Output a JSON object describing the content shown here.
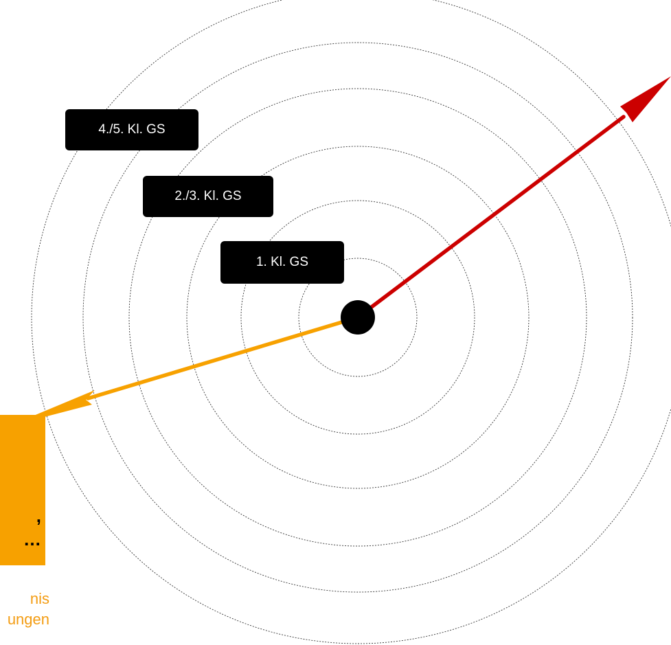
{
  "rings": [
    {
      "level": "1. Kl. GS"
    },
    {
      "level": "2./3. Kl. GS"
    },
    {
      "level": "4./5. Kl. GS"
    }
  ],
  "labels": {
    "level_1": "1. Kl. GS",
    "level_2": "2./3. Kl. GS",
    "level_3": "4./5. Kl. GS"
  },
  "orange_box": {
    "line_1": ",",
    "line_2": "…"
  },
  "orange_caption": {
    "line_1": "nis",
    "line_2": "ungen"
  },
  "colors": {
    "red_arrow": "#cc0000",
    "orange_arrow": "#f7a100",
    "center_dot": "#000000",
    "label_bg": "#000000",
    "label_text": "#ffffff",
    "orange_box_bg": "#f7a100",
    "orange_caption_text": "#f39c12"
  }
}
